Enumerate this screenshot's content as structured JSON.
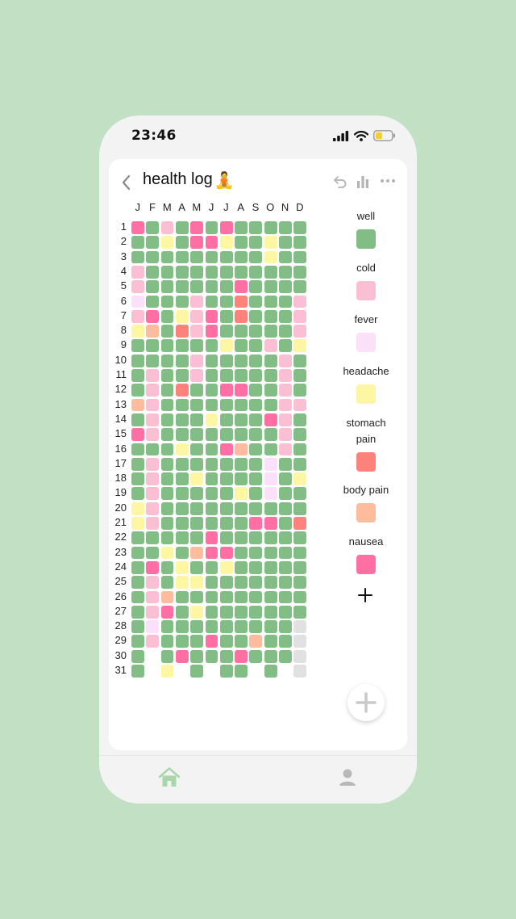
{
  "status_bar": {
    "time": "23:46"
  },
  "header": {
    "title": "health log",
    "title_emoji": "🧘"
  },
  "months": [
    "J",
    "F",
    "M",
    "A",
    "M",
    "J",
    "J",
    "A",
    "S",
    "O",
    "N",
    "D"
  ],
  "legend": [
    {
      "label": "well",
      "color": "#81bd84"
    },
    {
      "label": "cold",
      "color": "#fbbfd3"
    },
    {
      "label": "fever",
      "color": "#fbe0fa"
    },
    {
      "label": "headache",
      "color": "#fdf6a3"
    },
    {
      "label": "stomach pain",
      "color": "#fd827c"
    },
    {
      "label": "body pain",
      "color": "#fdbc9e"
    },
    {
      "label": "nausea",
      "color": "#ff6fa3"
    }
  ],
  "unlogged_color": "#e1e1e1",
  "log_legend_key": "W=well, C=cold, F=fever, H=headache, S=stomach pain, B=body pain, N=nausea, U=not logged, .=no day",
  "log": [
    "NWCWNWNWWWWW",
    "WWHWNNHWWHWW",
    "WWWWWWWWWHWW",
    "CWWWWWWWWWWW",
    "CWWWWWWNWWWW",
    "FWWWCWWSWWWC",
    "CNWHCNWSWWWC",
    "HBWSCNWWWWWC",
    "WWWWWWHWWCWH",
    "WWWWCWWWWWCW",
    "WCWWCWWWWWCW",
    "WCWSWWNNWWCW",
    "BCWWWWWWWWCC",
    "WCWWWHWWWNCW",
    "NCWWWWWWWWCW",
    "WWWHWWNBWWCW",
    "WCWWWWWWWFWW",
    "WCWWHWWWWFWH",
    "WCWWWWWHWFWW",
    "HCWWWWWWWWWW",
    "HCWWWWWWNNWS",
    "WWWWWNWWWWWW",
    "WWHWBNNWWWWW",
    "WNWHWWHWWWWW",
    "WCWHHWWWWWWW",
    "WCBWWWWWWWWW",
    "WCNWHWWWWWWW",
    "WFWWWWWWWWWU",
    "WCWWWNWWBWWU",
    "W.WNWWWNWWWU",
    "W.H.W.WW.W.U"
  ],
  "colors": {
    "accent": "#81bd84",
    "background": "#c2e0c4",
    "tab_active": "#a8d6ab",
    "tab_inactive": "#b9b9b9"
  }
}
